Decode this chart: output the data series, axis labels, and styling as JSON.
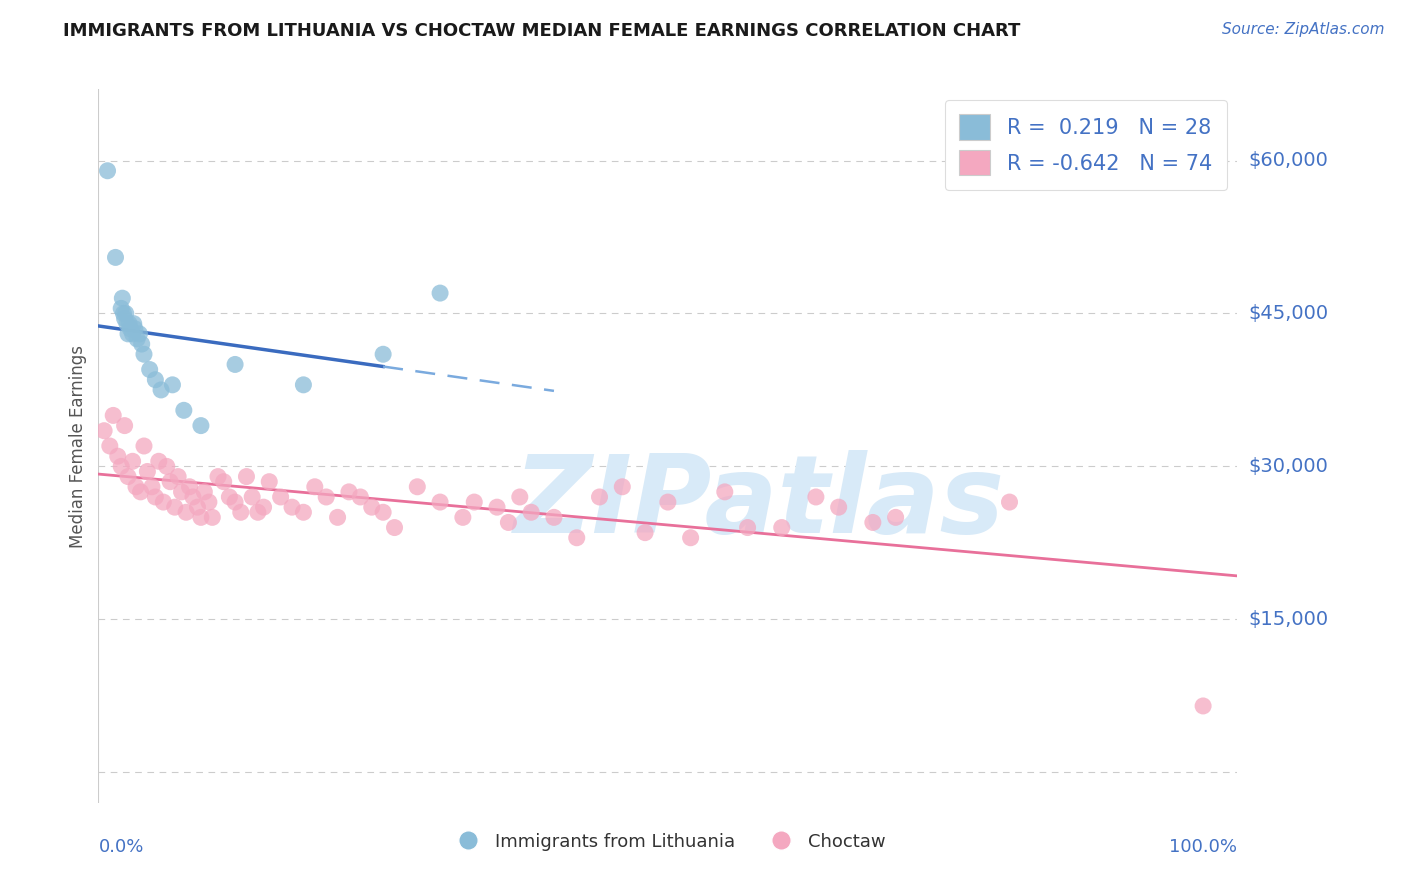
{
  "title": "IMMIGRANTS FROM LITHUANIA VS CHOCTAW MEDIAN FEMALE EARNINGS CORRELATION CHART",
  "source_text": "Source: ZipAtlas.com",
  "ylabel": "Median Female Earnings",
  "ytick_vals": [
    0,
    15000,
    30000,
    45000,
    60000
  ],
  "ytick_labels": [
    "",
    "$15,000",
    "$30,000",
    "$45,000",
    "$60,000"
  ],
  "ymin": -3000,
  "ymax": 67000,
  "xmin": 0.0,
  "xmax": 100.0,
  "R_blue": "0.219",
  "N_blue": "28",
  "R_pink": "-0.642",
  "N_pink": "74",
  "blue_scatter_color": "#8abcd8",
  "pink_scatter_color": "#f4a8c0",
  "trendline_blue_color": "#3a6bbf",
  "trendline_blue_dashed_color": "#7aaade",
  "trendline_pink_color": "#e8709a",
  "title_color": "#1a1a1a",
  "axis_label_color": "#4472c4",
  "watermark_color": "#d8eaf8",
  "background_color": "#ffffff",
  "grid_color": "#cccccc",
  "blue_scatter_x": [
    0.8,
    1.5,
    2.0,
    2.1,
    2.2,
    2.3,
    2.4,
    2.5,
    2.6,
    2.7,
    2.8,
    3.0,
    3.1,
    3.2,
    3.4,
    3.6,
    3.8,
    4.0,
    4.5,
    5.0,
    5.5,
    6.5,
    7.5,
    9.0,
    12.0,
    18.0,
    25.0,
    30.0
  ],
  "blue_scatter_y": [
    59000,
    50500,
    45500,
    46500,
    45000,
    44500,
    45000,
    44000,
    43000,
    44000,
    43500,
    43000,
    44000,
    43500,
    42500,
    43000,
    42000,
    41000,
    39500,
    38500,
    37500,
    38000,
    35500,
    34000,
    40000,
    38000,
    41000,
    47000
  ],
  "pink_scatter_x": [
    0.5,
    1.0,
    1.3,
    1.7,
    2.0,
    2.3,
    2.6,
    3.0,
    3.3,
    3.7,
    4.0,
    4.3,
    4.7,
    5.0,
    5.3,
    5.7,
    6.0,
    6.3,
    6.7,
    7.0,
    7.3,
    7.7,
    8.0,
    8.3,
    8.7,
    9.0,
    9.3,
    9.7,
    10.0,
    10.5,
    11.0,
    11.5,
    12.0,
    12.5,
    13.0,
    13.5,
    14.0,
    14.5,
    15.0,
    16.0,
    17.0,
    18.0,
    19.0,
    20.0,
    21.0,
    22.0,
    23.0,
    24.0,
    25.0,
    26.0,
    28.0,
    30.0,
    32.0,
    33.0,
    35.0,
    36.0,
    37.0,
    38.0,
    40.0,
    42.0,
    44.0,
    46.0,
    48.0,
    50.0,
    52.0,
    55.0,
    57.0,
    60.0,
    63.0,
    65.0,
    68.0,
    70.0,
    80.0,
    97.0
  ],
  "pink_scatter_y": [
    33500,
    32000,
    35000,
    31000,
    30000,
    34000,
    29000,
    30500,
    28000,
    27500,
    32000,
    29500,
    28000,
    27000,
    30500,
    26500,
    30000,
    28500,
    26000,
    29000,
    27500,
    25500,
    28000,
    27000,
    26000,
    25000,
    27500,
    26500,
    25000,
    29000,
    28500,
    27000,
    26500,
    25500,
    29000,
    27000,
    25500,
    26000,
    28500,
    27000,
    26000,
    25500,
    28000,
    27000,
    25000,
    27500,
    27000,
    26000,
    25500,
    24000,
    28000,
    26500,
    25000,
    26500,
    26000,
    24500,
    27000,
    25500,
    25000,
    23000,
    27000,
    28000,
    23500,
    26500,
    23000,
    27500,
    24000,
    24000,
    27000,
    26000,
    24500,
    25000,
    26500,
    6500
  ]
}
